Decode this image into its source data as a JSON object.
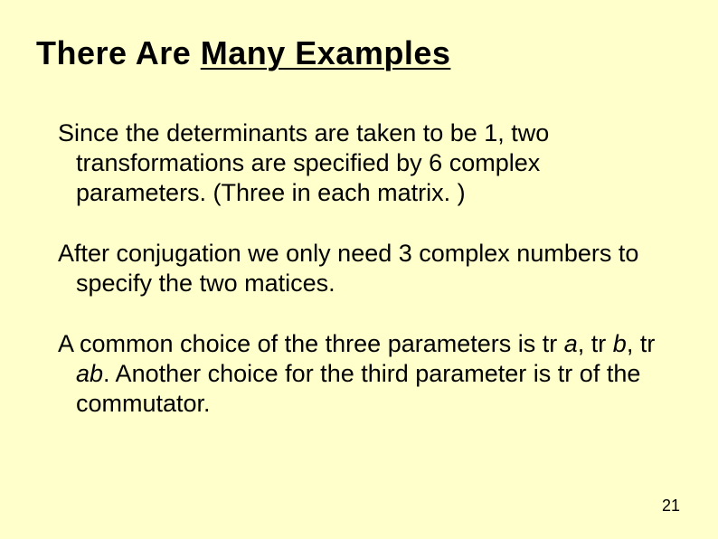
{
  "background_color": "#ffffcc",
  "text_color": "#000000",
  "title": {
    "part1": "There Are ",
    "part2_underlined": "Many Examples",
    "fontsize": 36,
    "fontweight": "bold"
  },
  "paragraphs": [
    {
      "text": "Since the determinants are taken to be 1, two transformations are specified by 6 complex parameters. (Three in each matrix. )"
    },
    {
      "text": "After conjugation we only need 3 complex numbers to specify the two matices."
    },
    {
      "before_a": "A common choice of the three parameters is tr ",
      "a": "a",
      "between_a_b": ", tr ",
      "b": "b",
      "between_b_ab": ", tr ",
      "ab": "ab",
      "after": ". Another choice for the third parameter is tr of the commutator."
    }
  ],
  "body_fontsize": 27,
  "page_number": "21",
  "page_number_fontsize": 18
}
